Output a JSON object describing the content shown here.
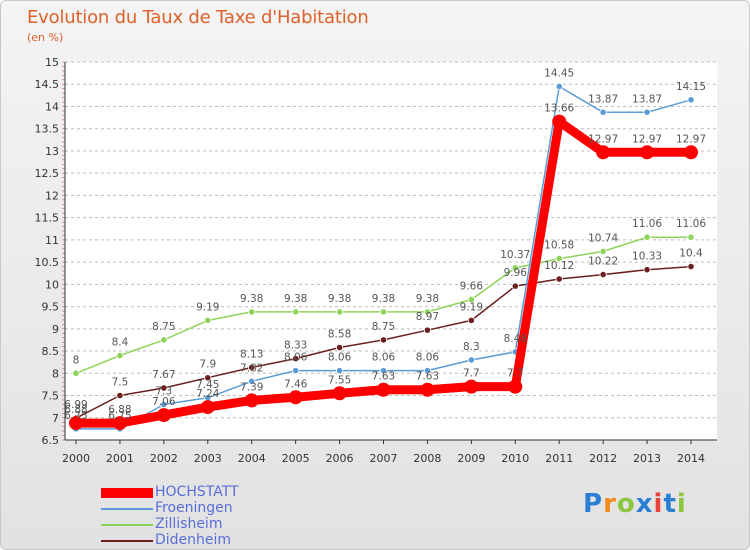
{
  "header": {
    "title": "Evolution du Taux de Taxe d'Habitation",
    "unit": "(en %)"
  },
  "brand": {
    "logo_text": "Proxiti",
    "colors": [
      "#2a7fd4",
      "#f08a1c",
      "#8cc63f",
      "#2a7fd4",
      "#e8413a",
      "#2a7fd4",
      "#8cc63f"
    ]
  },
  "chart_data": {
    "type": "line",
    "title": "Evolution du Taux de Taxe d'Habitation",
    "ylabel": "(en %)",
    "xlabel": "",
    "x": [
      "2000",
      "2001",
      "2002",
      "2003",
      "2004",
      "2005",
      "2006",
      "2007",
      "2008",
      "2009",
      "2010",
      "2011",
      "2012",
      "2013",
      "2014"
    ],
    "ylim": [
      6.5,
      15
    ],
    "yticks": [
      "6.5",
      "7",
      "7.5",
      "8",
      "8.5",
      "9",
      "9.5",
      "10",
      "10.5",
      "11",
      "11.5",
      "12",
      "12.5",
      "13",
      "13.5",
      "14",
      "14.5",
      "15"
    ],
    "grid": "horizontal dashed",
    "legend": "bottom-left",
    "series": [
      {
        "name": "HOCHSTATT",
        "color": "#ff0000",
        "values": [
          6.88,
          6.88,
          7.06,
          7.24,
          7.39,
          7.46,
          7.55,
          7.63,
          7.63,
          7.7,
          7.7,
          13.66,
          12.97,
          12.97,
          12.97
        ],
        "labels": [
          "6.88",
          "6.88",
          "7.06",
          "7.24",
          "7.39",
          "7.46",
          "7.55",
          "7.63",
          "7.63",
          "7.7",
          "7.7",
          "13.66",
          "12.97",
          "12.97",
          "12.97"
        ]
      },
      {
        "name": "Froeningen",
        "color": "#5b9bd5",
        "values": [
          6.75,
          6.75,
          7.3,
          7.45,
          7.82,
          8.06,
          8.06,
          8.06,
          8.06,
          8.3,
          8.48,
          14.45,
          13.87,
          13.87,
          14.15
        ],
        "labels": [
          "6.75",
          "6.75",
          "7.3",
          "7.45",
          "7.82",
          "8.06",
          "8.06",
          "8.06",
          "8.06",
          "8.3",
          "8.48",
          "14.45",
          "13.87",
          "13.87",
          "14.15"
        ]
      },
      {
        "name": "Zillisheim",
        "color": "#8fd45a",
        "values": [
          8,
          8.4,
          8.75,
          9.19,
          9.38,
          9.38,
          9.38,
          9.38,
          9.38,
          9.66,
          10.37,
          10.58,
          10.74,
          11.06,
          11.06
        ],
        "labels": [
          "8",
          "8.4",
          "8.75",
          "9.19",
          "9.38",
          "9.38",
          "9.38",
          "9.38",
          "9.38",
          "9.66",
          "10.37",
          "10.58",
          "10.74",
          "11.06",
          "11.06"
        ]
      },
      {
        "name": "Didenheim",
        "color": "#6b1f1f",
        "values": [
          6.99,
          7.5,
          7.67,
          7.9,
          8.13,
          8.33,
          8.58,
          8.75,
          8.97,
          9.19,
          9.96,
          10.12,
          10.22,
          10.33,
          10.4
        ],
        "labels": [
          "6.99",
          "7.5",
          "7.67",
          "7.9",
          "8.13",
          "8.33",
          "8.58",
          "8.75",
          "8.97",
          "9.19",
          "9.96",
          "10.12",
          "10.22",
          "10.33",
          "10.4"
        ]
      }
    ]
  }
}
